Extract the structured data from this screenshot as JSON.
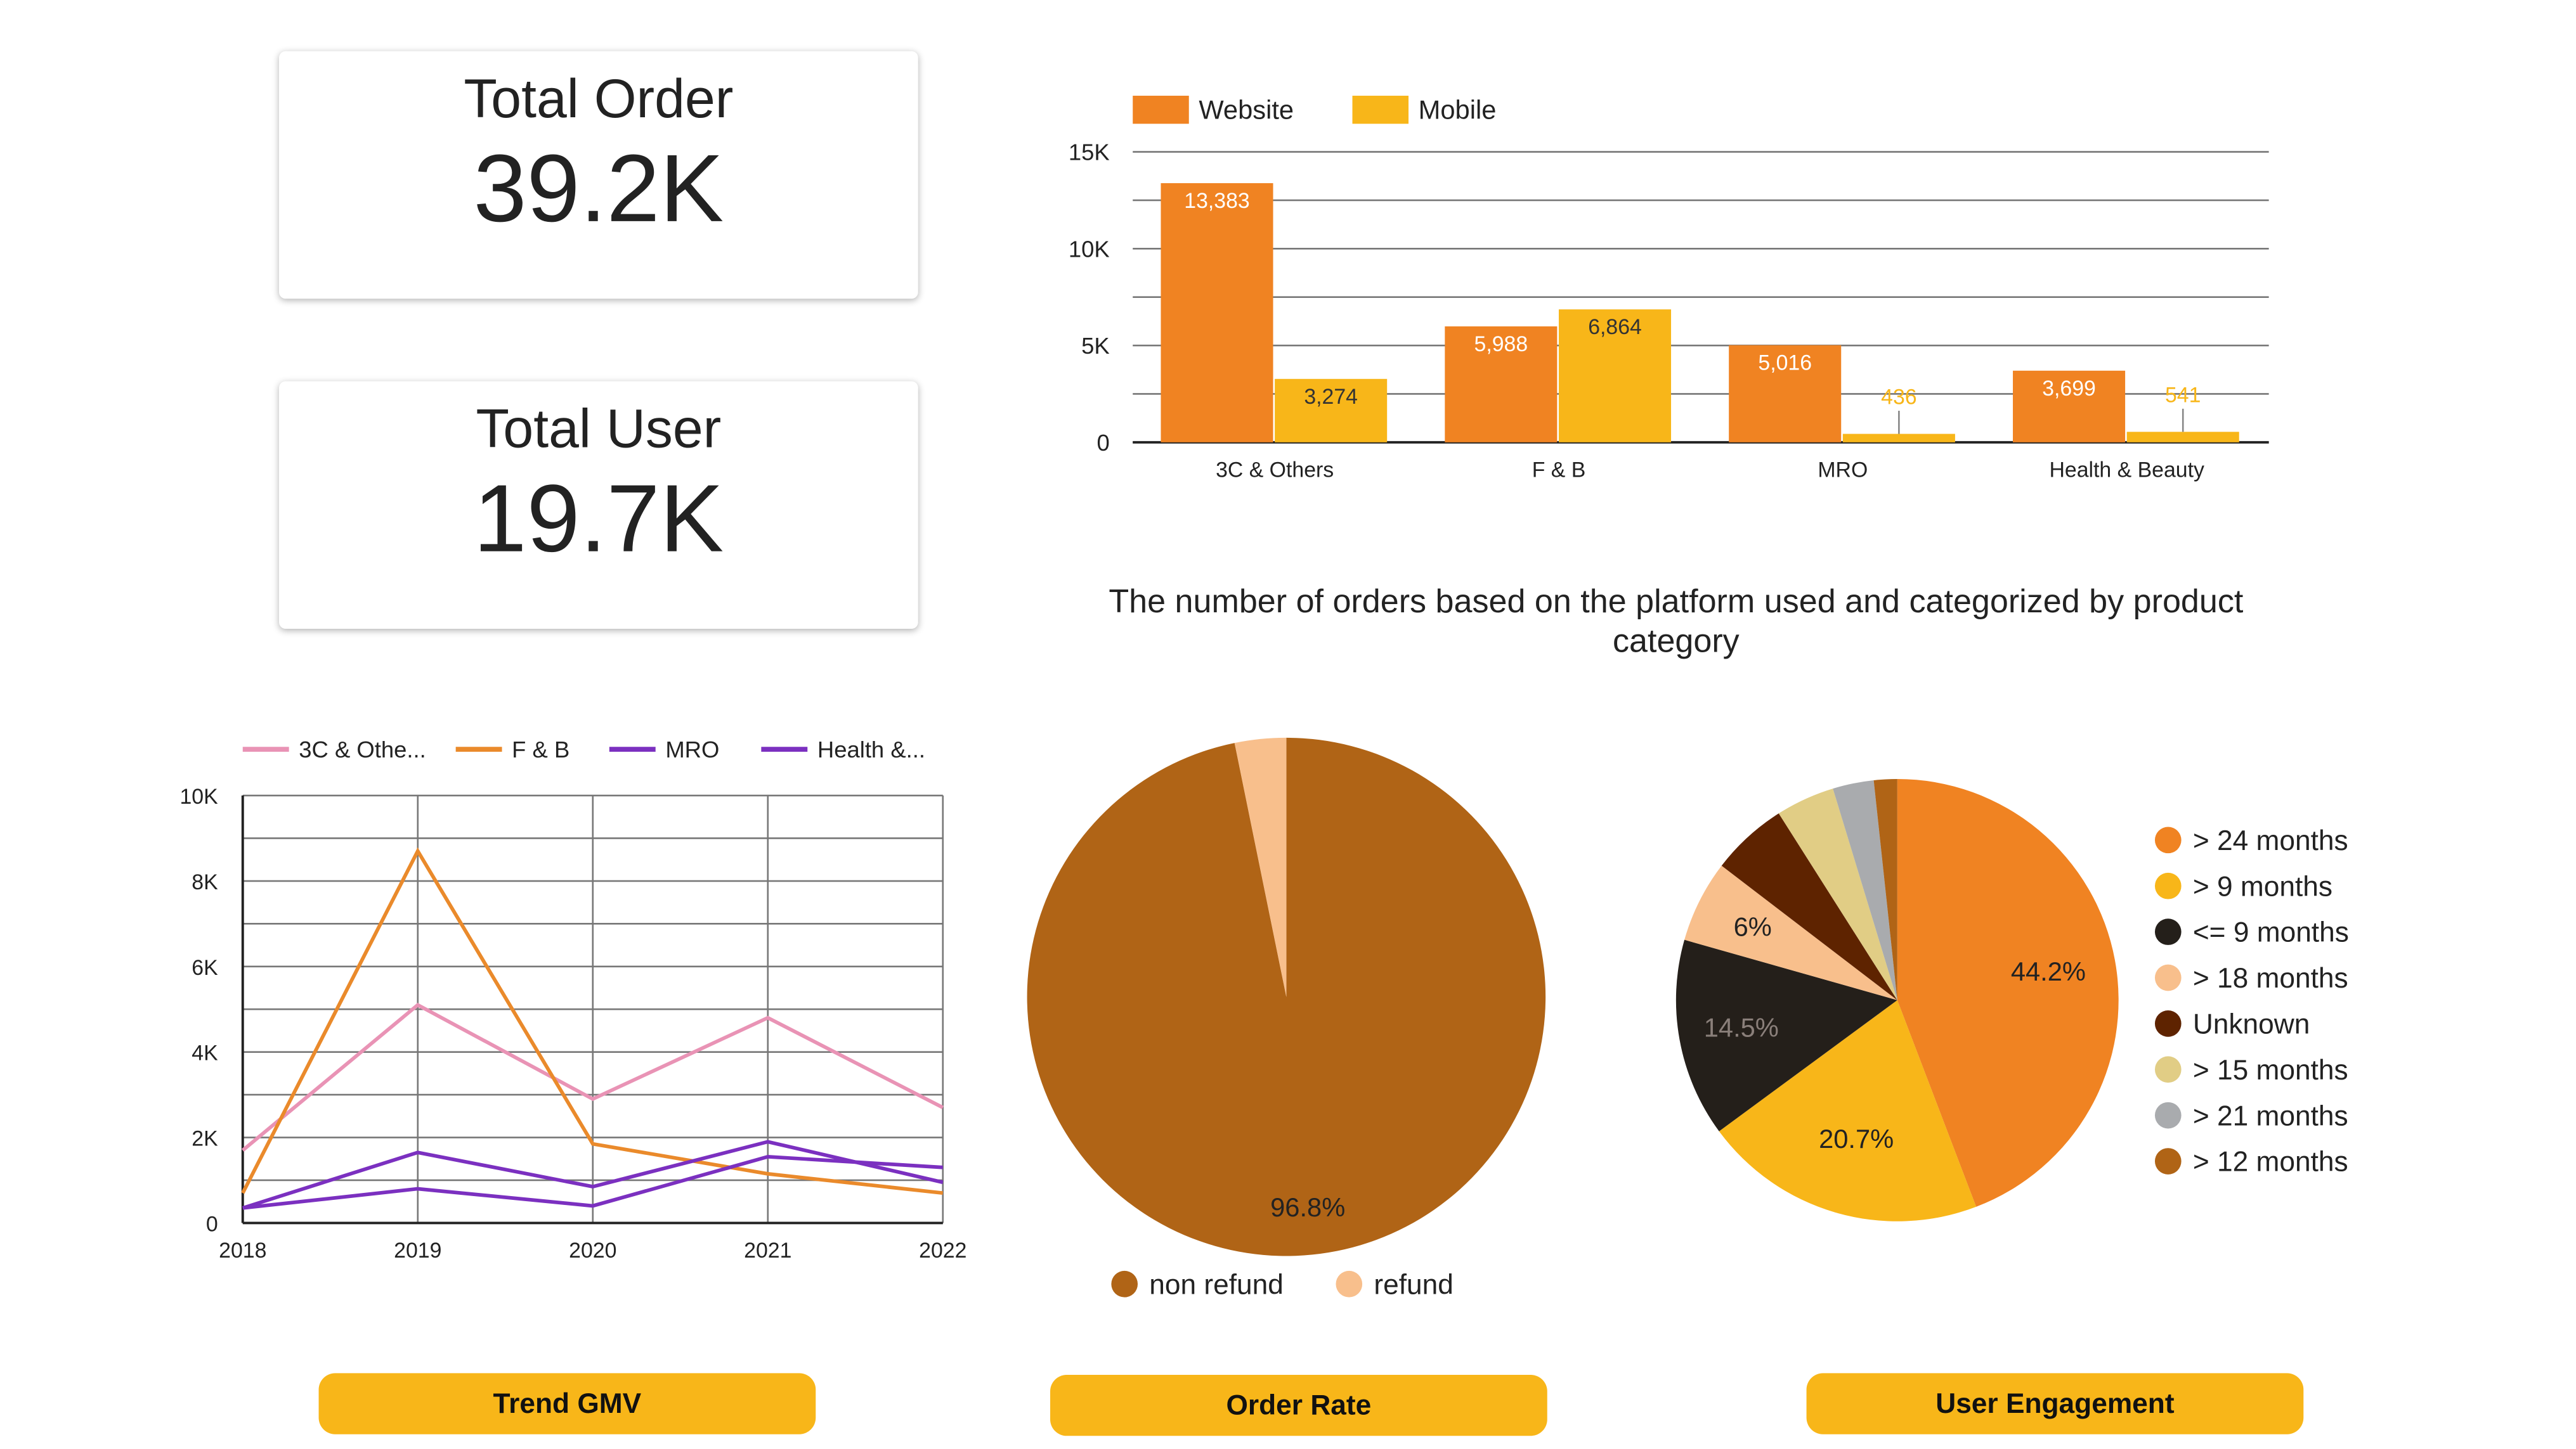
{
  "cards": [
    {
      "title": "Total Order",
      "value": "39.2K"
    },
    {
      "title": "Total User",
      "value": "19.7K"
    }
  ],
  "caption": "The number of orders based on the platform used and categorized by product category",
  "buttons": [
    "Trend GMV",
    "Order Rate",
    "User Engagement"
  ],
  "chart_data": [
    {
      "type": "bar",
      "categories": [
        "3C & Others",
        "F & B",
        "MRO",
        "Health & Beauty"
      ],
      "series": [
        {
          "name": "Website",
          "color": "#f08322",
          "values": [
            13383,
            5988,
            5016,
            3699
          ],
          "labels": [
            "13,383",
            "5,988",
            "5,016",
            "3,699"
          ]
        },
        {
          "name": "Mobile",
          "color": "#f8b619",
          "values": [
            3274,
            6864,
            436,
            541
          ],
          "labels": [
            "3,274",
            "6,864",
            "436",
            "541"
          ]
        }
      ],
      "yticks": [
        "0",
        "5K",
        "10K",
        "15K"
      ],
      "ylim": [
        0,
        15000
      ],
      "grid": true,
      "legend": "top-left"
    },
    {
      "type": "line",
      "x": [
        "2018",
        "2019",
        "2020",
        "2021",
        "2022"
      ],
      "series": [
        {
          "name": "3C & Othe...",
          "color": "#e993b5",
          "values": [
            1700,
            5100,
            2900,
            4800,
            2700
          ]
        },
        {
          "name": "F & B",
          "color": "#ea8a2b",
          "values": [
            700,
            8700,
            1850,
            1150,
            700
          ]
        },
        {
          "name": "MRO",
          "color": "#7b30c0",
          "values": [
            350,
            1650,
            850,
            1900,
            950
          ]
        },
        {
          "name": "Health &...",
          "color": "#7b30c0",
          "values": [
            350,
            800,
            400,
            1550,
            1300
          ]
        }
      ],
      "yticks": [
        "0",
        "2K",
        "4K",
        "6K",
        "8K",
        "10K"
      ],
      "ylim": [
        0,
        10000
      ],
      "grid": true,
      "legend": "top"
    },
    {
      "type": "pie",
      "slices": [
        {
          "name": "non refund",
          "value": 96.8,
          "color": "#b06416",
          "label": "96.8%"
        },
        {
          "name": "refund",
          "value": 3.2,
          "color": "#f8bf8c",
          "label": ""
        }
      ],
      "legend": "bottom"
    },
    {
      "type": "pie",
      "slices": [
        {
          "name": "> 24 months",
          "value": 44.2,
          "color": "#f08322",
          "label": "44.2%"
        },
        {
          "name": "> 9 months",
          "value": 20.7,
          "color": "#f8b619",
          "label": "20.7%"
        },
        {
          "name": "<= 9 months",
          "value": 14.5,
          "color": "#241f1a",
          "label": "14.5%"
        },
        {
          "name": "> 18 months",
          "value": 6.0,
          "color": "#f8bf8c",
          "label": "6%"
        },
        {
          "name": "Unknown",
          "value": 5.6,
          "color": "#5e2300",
          "label": ""
        },
        {
          "name": "> 15 months",
          "value": 4.3,
          "color": "#e1cd85",
          "label": ""
        },
        {
          "name": "> 21 months",
          "value": 3.0,
          "color": "#a9abae",
          "label": ""
        },
        {
          "name": "> 12 months",
          "value": 1.7,
          "color": "#b06416",
          "label": ""
        }
      ],
      "legend": "right"
    }
  ]
}
